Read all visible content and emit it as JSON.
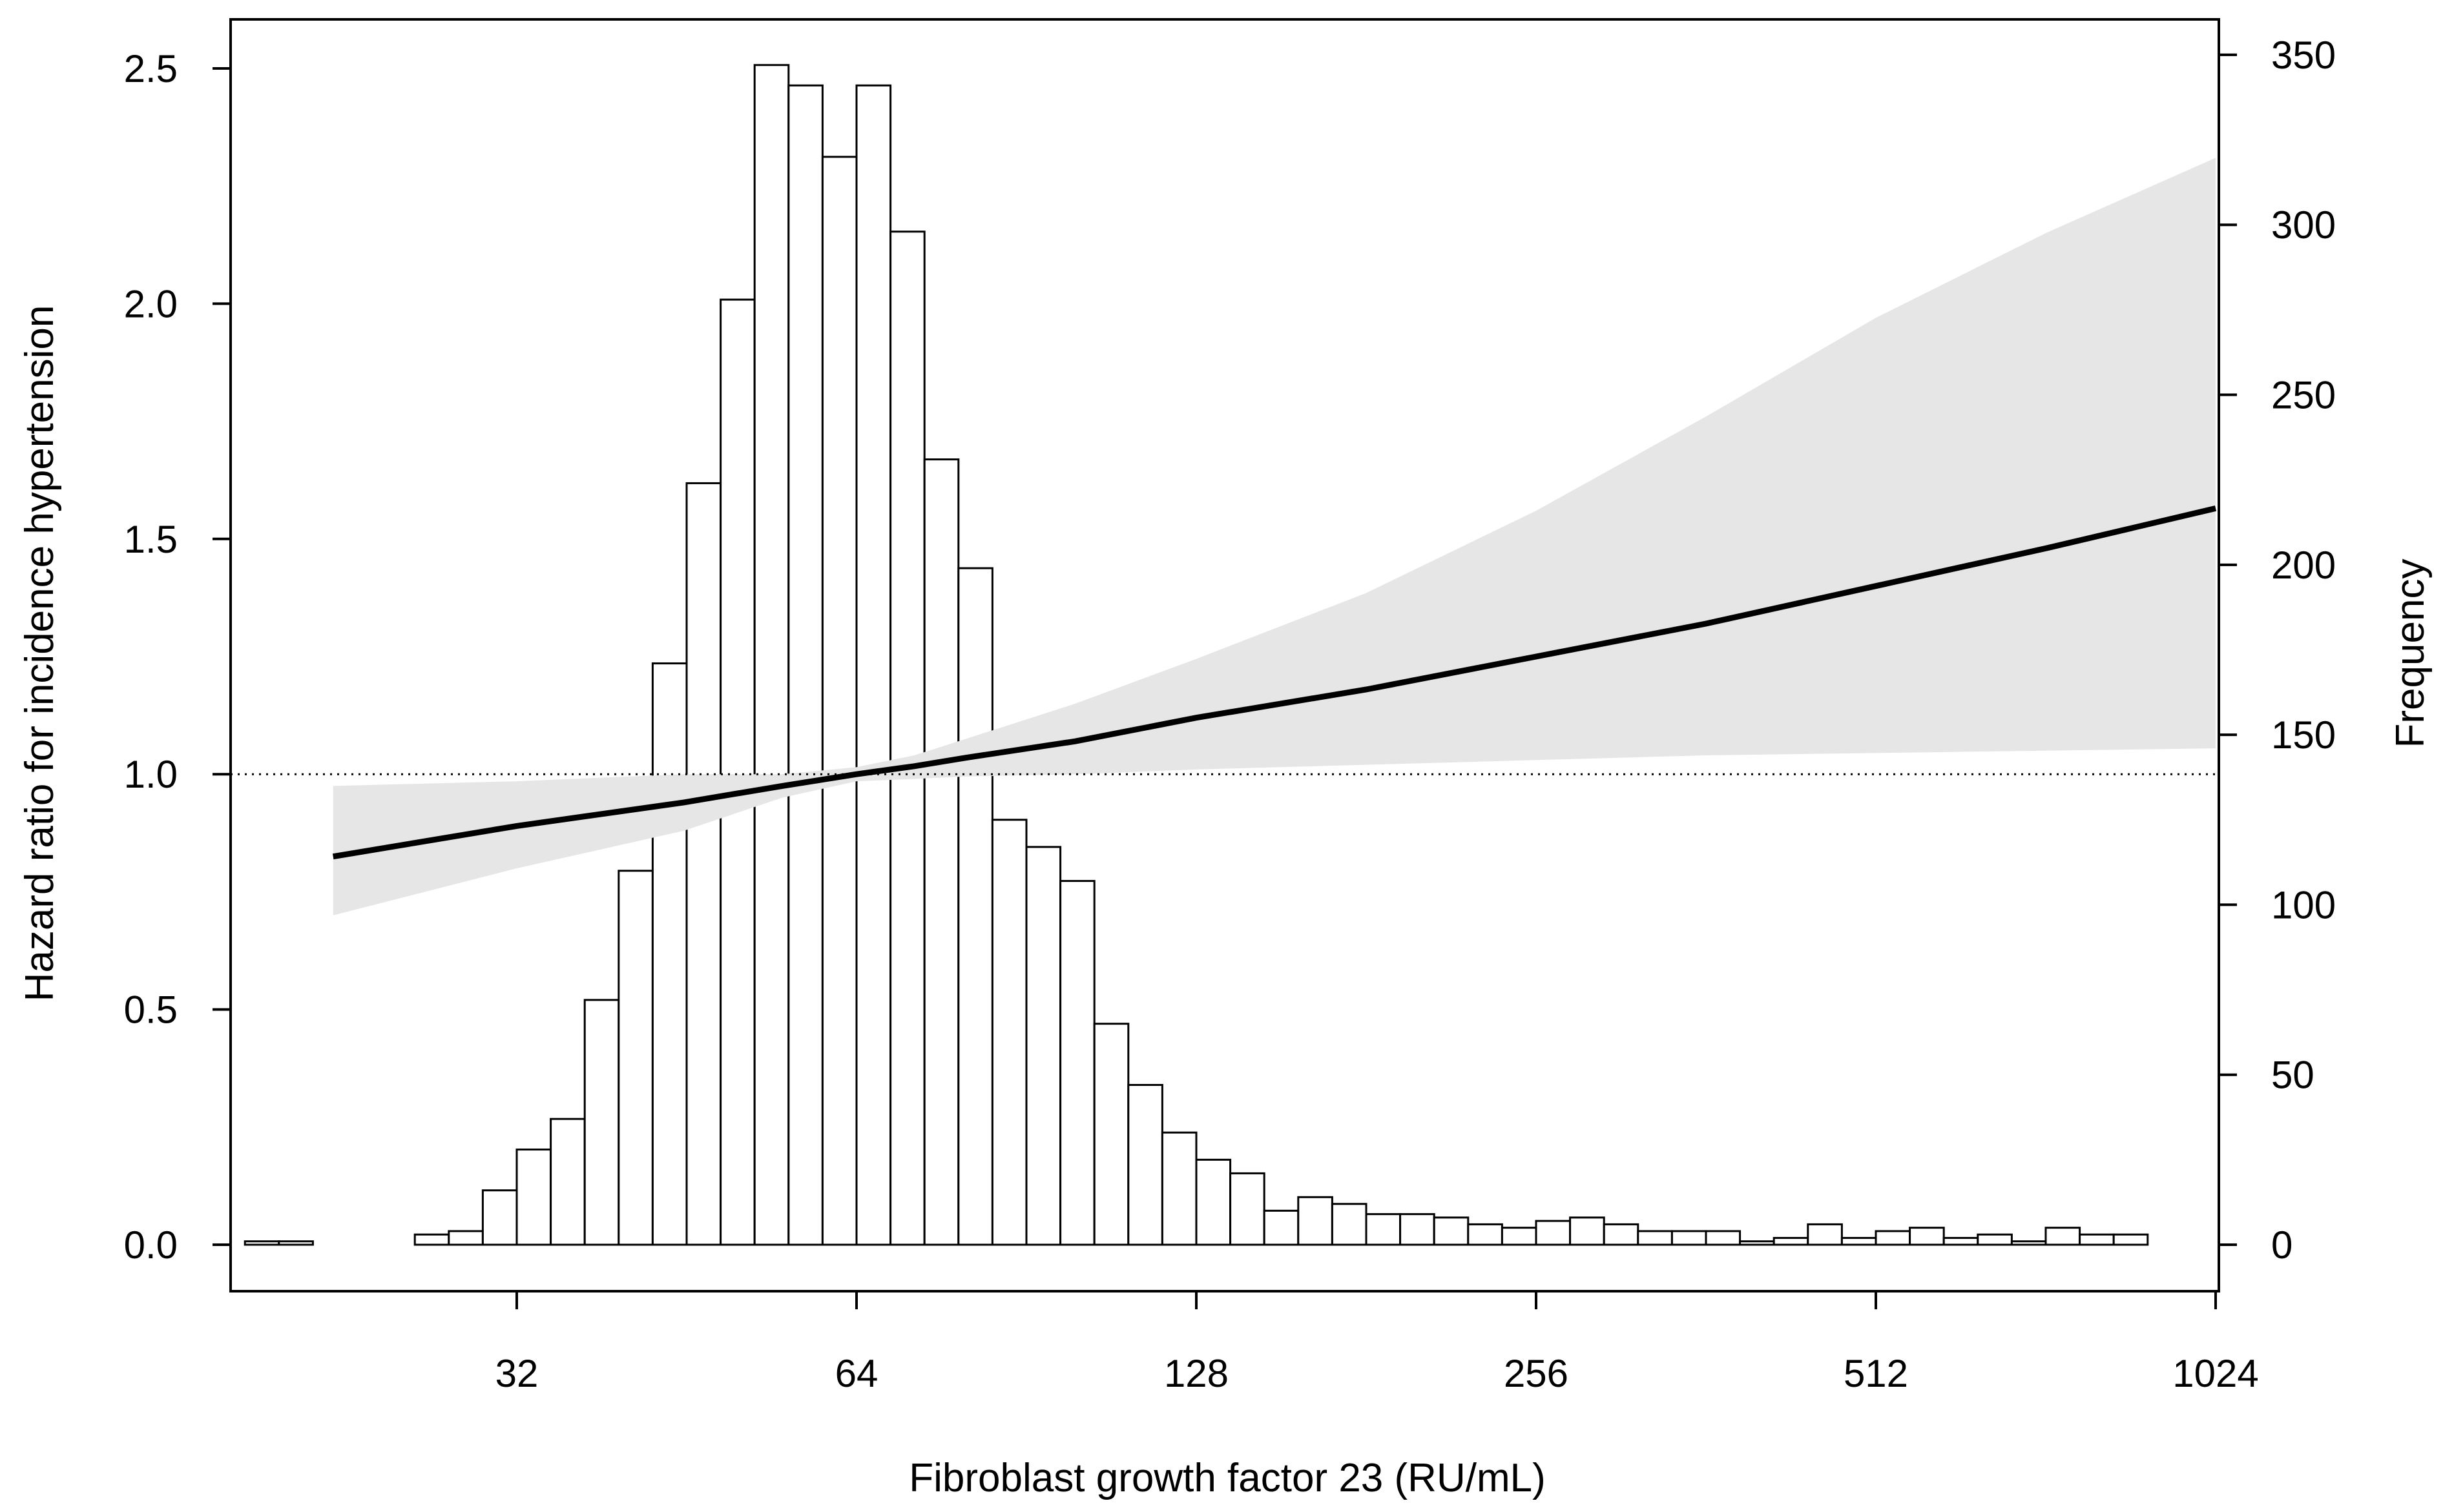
{
  "chart_data": {
    "type": "histogram-with-spline",
    "title": "",
    "xlabel": "Fibroblast growth factor 23 (RU/mL)",
    "ylabel_left": "Hazard ratio for incidence hypertension",
    "ylabel_right": "Frequency",
    "x_scale": "log2",
    "xlim": [
      20.0,
      1024
    ],
    "x_ticks": [
      32,
      64,
      128,
      256,
      512,
      1024
    ],
    "x_tick_labels": [
      "32",
      "64",
      "128",
      "256",
      "512",
      "1024"
    ],
    "ylim_left": [
      -0.1,
      2.6
    ],
    "y_ticks_left": [
      0.0,
      0.5,
      1.0,
      1.5,
      2.0,
      2.5
    ],
    "y_tick_labels_left": [
      "0.0",
      "0.5",
      "1.0",
      "1.5",
      "2.0",
      "2.5"
    ],
    "ylim_right": [
      0,
      350
    ],
    "y_ticks_right": [
      0,
      50,
      100,
      150,
      200,
      250,
      300,
      350
    ],
    "y_tick_labels_right": [
      "0",
      "50",
      "100",
      "150",
      "200",
      "250",
      "300",
      "350"
    ],
    "reference_line": {
      "value": 1.0,
      "style": "dotted"
    },
    "histogram": {
      "bin_start_log2": 4.2,
      "bin_width_log2": 0.1,
      "frequencies": [
        1,
        1,
        0,
        0,
        0,
        3,
        4,
        16,
        28,
        37,
        72,
        110,
        171,
        224,
        278,
        347,
        341,
        320,
        341,
        298,
        231,
        199,
        125,
        117,
        107,
        65,
        47,
        33,
        25,
        21,
        10,
        14,
        12,
        9,
        9,
        8,
        6,
        5,
        7,
        8,
        6,
        4,
        4,
        4,
        1,
        2,
        6,
        2,
        4,
        5,
        2,
        3,
        1,
        5,
        3,
        3
      ]
    },
    "series": [
      {
        "name": "Hazard ratio",
        "x": [
          22,
          32,
          45,
          55,
          64,
          72,
          80,
          100,
          128,
          181,
          256,
          362,
          512,
          724,
          1024
        ],
        "hr": [
          0.825,
          0.89,
          0.94,
          0.975,
          1.0,
          1.017,
          1.035,
          1.07,
          1.12,
          1.18,
          1.25,
          1.32,
          1.4,
          1.48,
          1.565
        ],
        "ci_lower": [
          0.7,
          0.8,
          0.88,
          0.95,
          0.985,
          0.99,
          0.995,
          1.0,
          1.01,
          1.02,
          1.03,
          1.04,
          1.045,
          1.05,
          1.055
        ],
        "ci_upper": [
          0.975,
          0.985,
          1.0,
          1.0,
          1.015,
          1.04,
          1.075,
          1.15,
          1.245,
          1.385,
          1.56,
          1.76,
          1.97,
          2.15,
          2.31
        ]
      }
    ]
  }
}
